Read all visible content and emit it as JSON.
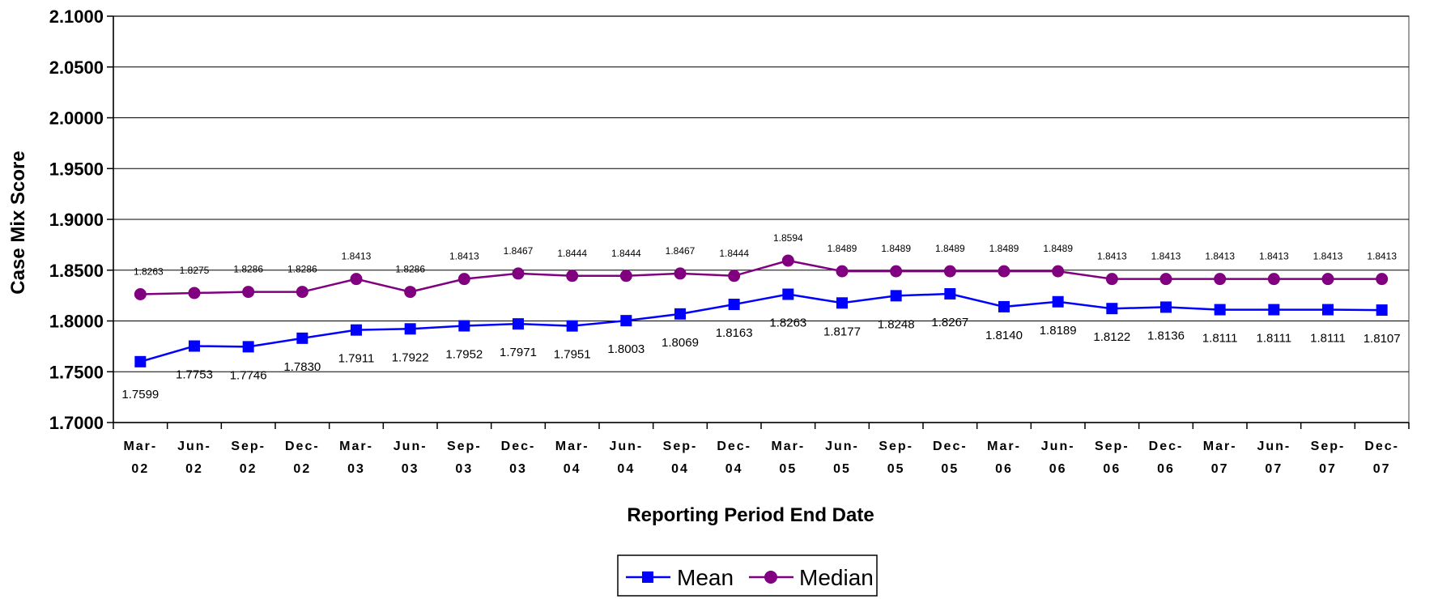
{
  "chart_data": {
    "type": "line",
    "xlabel": "Reporting Period End Date",
    "ylabel": "Case Mix Score",
    "ylim": [
      1.7,
      2.1
    ],
    "yticks": [
      "1.7000",
      "1.7500",
      "1.8000",
      "1.8500",
      "1.9000",
      "1.9500",
      "2.0000",
      "2.0500",
      "2.1000"
    ],
    "grid": true,
    "legend_position": "bottom-center",
    "categories": [
      [
        "Mar-",
        "02"
      ],
      [
        "Jun-",
        "02"
      ],
      [
        "Sep-",
        "02"
      ],
      [
        "Dec-",
        "02"
      ],
      [
        "Mar-",
        "03"
      ],
      [
        "Jun-",
        "03"
      ],
      [
        "Sep-",
        "03"
      ],
      [
        "Dec-",
        "03"
      ],
      [
        "Mar-",
        "04"
      ],
      [
        "Jun-",
        "04"
      ],
      [
        "Sep-",
        "04"
      ],
      [
        "Dec-",
        "04"
      ],
      [
        "Mar-",
        "05"
      ],
      [
        "Jun-",
        "05"
      ],
      [
        "Sep-",
        "05"
      ],
      [
        "Dec-",
        "05"
      ],
      [
        "Mar-",
        "06"
      ],
      [
        "Jun-",
        "06"
      ],
      [
        "Sep-",
        "06"
      ],
      [
        "Dec-",
        "06"
      ],
      [
        "Mar-",
        "07"
      ],
      [
        "Jun-",
        "07"
      ],
      [
        "Sep-",
        "07"
      ],
      [
        "Dec-",
        "07"
      ]
    ],
    "series": [
      {
        "name": "Mean",
        "color": "#0000ff",
        "marker": "square",
        "values": [
          1.7599,
          1.7753,
          1.7746,
          1.783,
          1.7911,
          1.7922,
          1.7952,
          1.7971,
          1.7951,
          1.8003,
          1.8069,
          1.8163,
          1.8263,
          1.8177,
          1.8248,
          1.8267,
          1.814,
          1.8189,
          1.8122,
          1.8136,
          1.8111,
          1.8111,
          1.8111,
          1.8107
        ],
        "labels": [
          "1.7599",
          "1.7753",
          "1.7746",
          "1.7830",
          "1.7911",
          "1.7922",
          "1.7952",
          "1.7971",
          "1.7951",
          "1.8003",
          "1.8069",
          "1.8163",
          "1.8263",
          "1.8177",
          "1.8248",
          "1.8267",
          "1.8140",
          "1.8189",
          "1.8122",
          "1.8136",
          "1.8111",
          "1.8111",
          "1.8111",
          "1.8107"
        ]
      },
      {
        "name": "Median",
        "color": "#800080",
        "marker": "circle",
        "values": [
          1.8263,
          1.8275,
          1.8286,
          1.8286,
          1.8413,
          1.8286,
          1.8413,
          1.8467,
          1.8444,
          1.8444,
          1.8467,
          1.8444,
          1.8594,
          1.8489,
          1.8489,
          1.8489,
          1.8489,
          1.8489,
          1.8413,
          1.8413,
          1.8413,
          1.8413,
          1.8413,
          1.8413
        ],
        "labels": [
          "1.8263",
          "1.8275",
          "1.8286",
          "1.8286",
          "1.8413",
          "1.8286",
          "1.8413",
          "1.8467",
          "1.8444",
          "1.8444",
          "1.8467",
          "1.8444",
          "1.8594",
          "1.8489",
          "1.8489",
          "1.8489",
          "1.8489",
          "1.8489",
          "1.8413",
          "1.8413",
          "1.8413",
          "1.8413",
          "1.8413",
          "1.8413"
        ]
      }
    ]
  }
}
